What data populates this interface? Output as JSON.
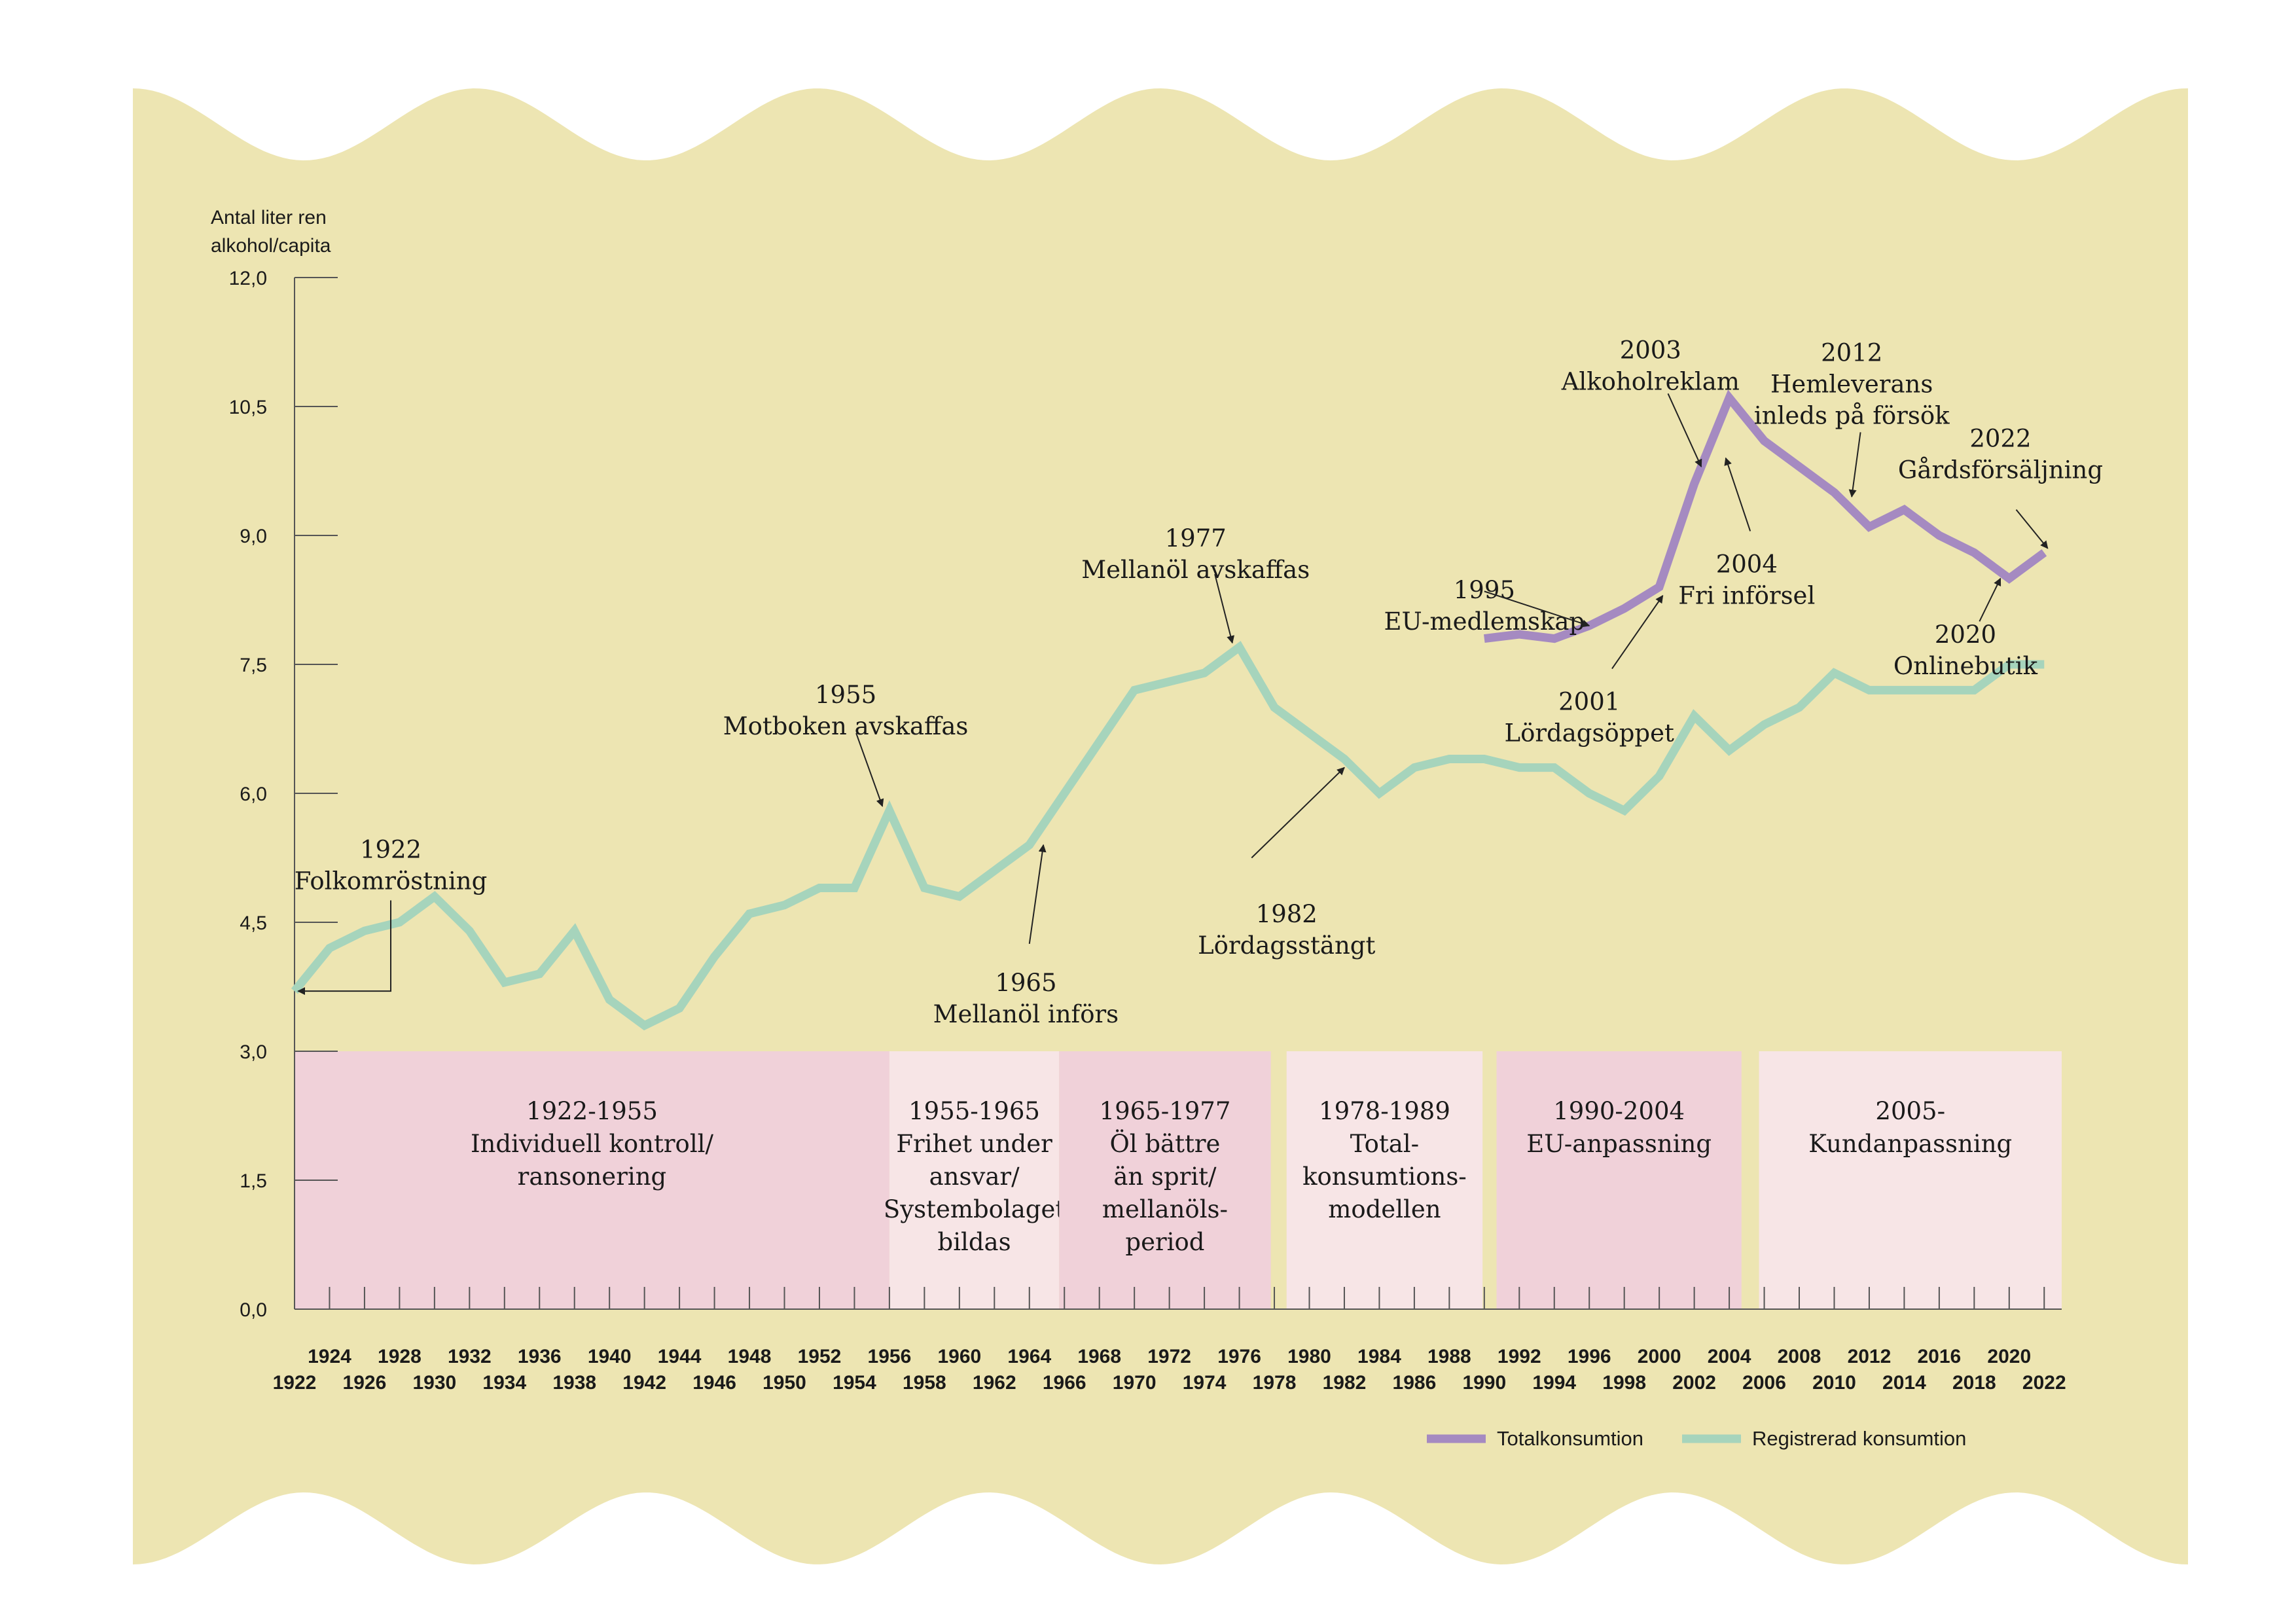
{
  "colors": {
    "background": "#ede5b2",
    "total": "#a58ac1",
    "registered": "#a6d4bc",
    "era_dark": "#f0d1d9",
    "era_light": "#f7e5e6",
    "axis": "#555555",
    "text": "#1a1a1a"
  },
  "chart_data": {
    "type": "line",
    "ylabel": "Antal liter ren alkohol/capita",
    "ylim": [
      0,
      12
    ],
    "yticks": [
      {
        "value": 0,
        "label": "0,0"
      },
      {
        "value": 1.5,
        "label": "1,5"
      },
      {
        "value": 3,
        "label": "3,0"
      },
      {
        "value": 4.5,
        "label": "4,5"
      },
      {
        "value": 6,
        "label": "6,0"
      },
      {
        "value": 7.5,
        "label": "7,5"
      },
      {
        "value": 9,
        "label": "9,0"
      },
      {
        "value": 10.5,
        "label": "10,5"
      },
      {
        "value": 12,
        "label": "12,0"
      }
    ],
    "xlim": [
      1922,
      2023
    ],
    "xticks_top": [
      "1924",
      "1928",
      "1932",
      "1936",
      "1940",
      "1944",
      "1948",
      "1952",
      "1956",
      "1960",
      "1964",
      "1968",
      "1972",
      "1976",
      "1980",
      "1984",
      "1988",
      "1992",
      "1996",
      "2000",
      "2004",
      "2008",
      "2012",
      "2016",
      "2020"
    ],
    "xticks_bottom": [
      "1922",
      "1926",
      "1930",
      "1934",
      "1938",
      "1942",
      "1946",
      "1950",
      "1954",
      "1958",
      "1962",
      "1966",
      "1970",
      "1974",
      "1978",
      "1982",
      "1986",
      "1990",
      "1994",
      "1998",
      "2002",
      "2006",
      "2010",
      "2014",
      "2018",
      "2022"
    ],
    "grid": false,
    "legend_position": "bottom-right",
    "legend": {
      "total_label": "Totalkonsumtion",
      "registered_label": "Registrerad konsumtion"
    },
    "series": [
      {
        "name": "Registrerad konsumtion",
        "x": [
          1922,
          1924,
          1926,
          1928,
          1930,
          1932,
          1934,
          1936,
          1938,
          1940,
          1942,
          1944,
          1946,
          1948,
          1950,
          1952,
          1954,
          1956,
          1958,
          1960,
          1962,
          1964,
          1966,
          1968,
          1970,
          1972,
          1974,
          1976,
          1978,
          1980,
          1982,
          1984,
          1986,
          1988,
          1990,
          1992,
          1994,
          1996,
          1998,
          2000,
          2002,
          2004,
          2006,
          2008,
          2010,
          2012,
          2014,
          2016,
          2018,
          2020,
          2022
        ],
        "values": [
          3.7,
          4.2,
          4.4,
          4.5,
          4.8,
          4.4,
          3.8,
          3.9,
          4.4,
          3.6,
          3.3,
          3.5,
          4.1,
          4.6,
          4.7,
          4.9,
          4.9,
          5.8,
          4.9,
          4.8,
          5.1,
          5.4,
          6.0,
          6.6,
          7.2,
          7.3,
          7.4,
          7.7,
          7.0,
          6.7,
          6.4,
          6.0,
          6.3,
          6.4,
          6.4,
          6.3,
          6.3,
          6.0,
          5.8,
          6.2,
          6.9,
          6.5,
          6.8,
          7.0,
          7.4,
          7.2,
          7.2,
          7.2,
          7.2,
          7.5,
          7.5
        ]
      },
      {
        "name": "Totalkonsumtion",
        "x": [
          1990,
          1992,
          1994,
          1996,
          1998,
          2000,
          2002,
          2004,
          2006,
          2008,
          2010,
          2012,
          2014,
          2016,
          2018,
          2020,
          2022
        ],
        "values": [
          7.8,
          7.85,
          7.8,
          7.95,
          8.15,
          8.4,
          9.6,
          10.6,
          10.1,
          9.8,
          9.5,
          9.1,
          9.3,
          9.0,
          8.8,
          8.5,
          8.8
        ]
      }
    ],
    "eras": [
      {
        "start": 1922,
        "end": 1956,
        "shade": "dark",
        "lines": [
          "1922-1955",
          "Individuell kontroll/",
          "ransonering"
        ]
      },
      {
        "start": 1956,
        "end": 1965.7,
        "shade": "light",
        "lines": [
          "1955-1965",
          "Frihet under",
          "ansvar/",
          "Systembolaget",
          "bildas"
        ]
      },
      {
        "start": 1965.7,
        "end": 1977.8,
        "shade": "dark",
        "lines": [
          "1965-1977",
          "Öl bättre",
          "än sprit/",
          "mellanöls-",
          "period"
        ]
      },
      {
        "start": 1978.7,
        "end": 1989.9,
        "shade": "light",
        "lines": [
          "1978-1989",
          "Total-",
          "konsumtions-",
          "modellen"
        ]
      },
      {
        "start": 1990.7,
        "end": 2004.7,
        "shade": "dark",
        "lines": [
          "1990-2004",
          "EU-anpassning"
        ]
      },
      {
        "start": 2005.7,
        "end": 2023,
        "shade": "light",
        "lines": [
          "2005-",
          "Kundanpassning"
        ]
      }
    ],
    "annotations": [
      {
        "lines": [
          "1922",
          "Folkomröstning"
        ],
        "text_x": 1927.5,
        "text_y": 5.25,
        "pointer": "bracket",
        "target": [
          1922.2,
          3.7
        ]
      },
      {
        "lines": [
          "1955",
          "Motboken avskaffas"
        ],
        "text_x": 1953.5,
        "text_y": 7.05,
        "target": [
          1955.6,
          5.85
        ],
        "from": [
          1954.1,
          6.7
        ]
      },
      {
        "lines": [
          "1965",
          "Mellanöl införs"
        ],
        "text_x": 1963.8,
        "text_y": 3.7,
        "target": [
          1964.8,
          5.4
        ],
        "from": [
          1964.0,
          4.25
        ]
      },
      {
        "lines": [
          "1977",
          "Mellanöl avskaffas"
        ],
        "text_x": 1973.5,
        "text_y": 8.87,
        "target": [
          1975.6,
          7.75
        ],
        "from": [
          1974.6,
          8.55
        ]
      },
      {
        "lines": [
          "1982",
          "Lördagsstängt"
        ],
        "text_x": 1978.7,
        "text_y": 4.5,
        "target": [
          1982.0,
          6.3
        ],
        "from": [
          1976.7,
          5.25
        ]
      },
      {
        "lines": [
          "1995",
          "EU-medlemskap"
        ],
        "text_x": 1990.0,
        "text_y": 8.27,
        "target": [
          1996.0,
          7.95
        ],
        "from": [
          1990.0,
          8.35
        ]
      },
      {
        "lines": [
          "2001",
          "Lördagsöppet"
        ],
        "text_x": 1996.0,
        "text_y": 6.97,
        "target": [
          2000.2,
          8.3
        ],
        "from": [
          1997.3,
          7.45
        ]
      },
      {
        "lines": [
          "2003",
          "Alkoholreklam"
        ],
        "text_x": 1999.5,
        "text_y": 11.06,
        "target": [
          2002.4,
          9.8
        ],
        "from": [
          2000.5,
          10.65
        ]
      },
      {
        "lines": [
          "2004",
          "Fri införsel"
        ],
        "text_x": 2005.0,
        "text_y": 8.57,
        "target": [
          2003.8,
          9.9
        ],
        "from": [
          2005.2,
          9.05
        ]
      },
      {
        "lines": [
          "2012",
          "Hemleverans",
          "inleds på försök"
        ],
        "text_x": 2011.0,
        "text_y": 11.03,
        "target": [
          2011.0,
          9.45
        ],
        "from": [
          2011.5,
          10.2
        ]
      },
      {
        "lines": [
          "2022",
          "Gårdsförsäljning"
        ],
        "text_x": 2019.5,
        "text_y": 10.03,
        "target": [
          2022.2,
          8.85
        ],
        "from": [
          2020.4,
          9.3
        ]
      },
      {
        "lines": [
          "2020",
          "Onlinebutik"
        ],
        "text_x": 2017.5,
        "text_y": 7.75,
        "target": [
          2019.5,
          8.5
        ],
        "from": [
          2018.3,
          8.0
        ]
      }
    ]
  }
}
